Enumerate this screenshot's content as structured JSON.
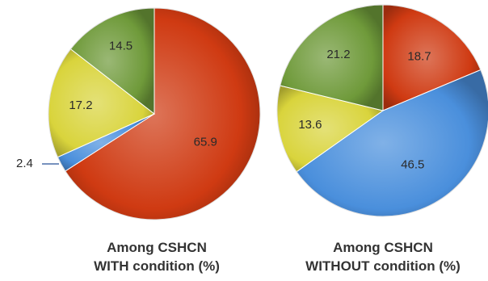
{
  "chart_data": [
    {
      "type": "pie",
      "title_lines": [
        "Among CSHCN",
        "WITH condition (%)"
      ],
      "slices": [
        {
          "value": 65.9,
          "label": "65.9",
          "color": "#cf3a12"
        },
        {
          "value": 2.4,
          "label": "2.4",
          "color": "#4a8fdc"
        },
        {
          "value": 17.2,
          "label": "17.2",
          "color": "#d9d43c"
        },
        {
          "value": 14.5,
          "label": "14.5",
          "color": "#6f9a3a"
        }
      ]
    },
    {
      "type": "pie",
      "title_lines": [
        "Among CSHCN",
        "WITHOUT condition (%)"
      ],
      "slices": [
        {
          "value": 18.7,
          "label": "18.7",
          "color": "#cf3a12"
        },
        {
          "value": 46.5,
          "label": "46.5",
          "color": "#4a8fdc"
        },
        {
          "value": 13.6,
          "label": "13.6",
          "color": "#d9d43c"
        },
        {
          "value": 21.2,
          "label": "21.2",
          "color": "#6f9a3a"
        }
      ]
    }
  ]
}
